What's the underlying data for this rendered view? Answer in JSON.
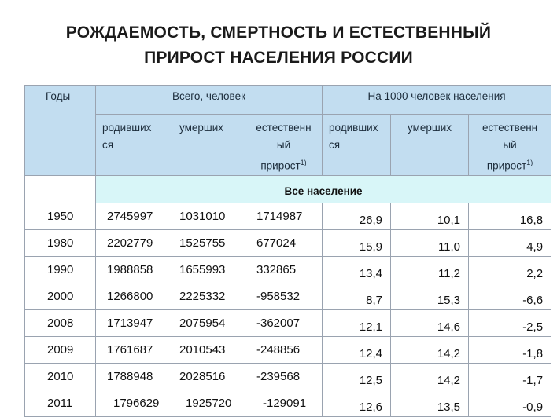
{
  "title_line1": "РОЖДАЕМОСТЬ, СМЕРТНОСТЬ И ЕСТЕСТВЕННЫЙ",
  "title_line2": "ПРИРОСТ НАСЕЛЕНИЯ РОССИИ",
  "header": {
    "years": "Годы",
    "total_group": "Всего, человек",
    "per1000_group": "На 1000 человек населения",
    "births_l1": "родивших",
    "births_l2": "ся",
    "deaths": "умерших",
    "natural_l1": "естественн",
    "natural_l2": "ый",
    "natural_l3": "прирост",
    "footnote_mark": "1)"
  },
  "population_label": "Все население",
  "rows": [
    {
      "year": "1950",
      "born": "2745997",
      "died": "1031010",
      "growth": "1714987",
      "born_rate": "26,9",
      "death_rate": "10,1",
      "growth_rate": "16,8"
    },
    {
      "year": "1980",
      "born": "2202779",
      "died": "1525755",
      "growth": "677024",
      "born_rate": "15,9",
      "death_rate": "11,0",
      "growth_rate": "4,9"
    },
    {
      "year": "1990",
      "born": "1988858",
      "died": "1655993",
      "growth": "332865",
      "born_rate": "13,4",
      "death_rate": "11,2",
      "growth_rate": "2,2"
    },
    {
      "year": "2000",
      "born": "1266800",
      "died": "2225332",
      "growth": "-958532",
      "born_rate": "8,7",
      "death_rate": "15,3",
      "growth_rate": "-6,6"
    },
    {
      "year": "2008",
      "born": "1713947",
      "died": "2075954",
      "growth": "-362007",
      "born_rate": "12,1",
      "death_rate": "14,6",
      "growth_rate": "-2,5"
    },
    {
      "year": "2009",
      "born": "1761687",
      "died": "2010543",
      "growth": "-248856",
      "born_rate": "12,4",
      "death_rate": "14,2",
      "growth_rate": "-1,8"
    },
    {
      "year": "2010",
      "born": "1788948",
      "died": "2028516",
      "growth": "-239568",
      "born_rate": "12,5",
      "death_rate": "14,2",
      "growth_rate": "-1,7"
    },
    {
      "year": "2011",
      "born": "1796629",
      "died": "1925720",
      "growth": "-129091",
      "born_rate": "12,6",
      "death_rate": "13,5",
      "growth_rate": "-0,9"
    }
  ]
}
